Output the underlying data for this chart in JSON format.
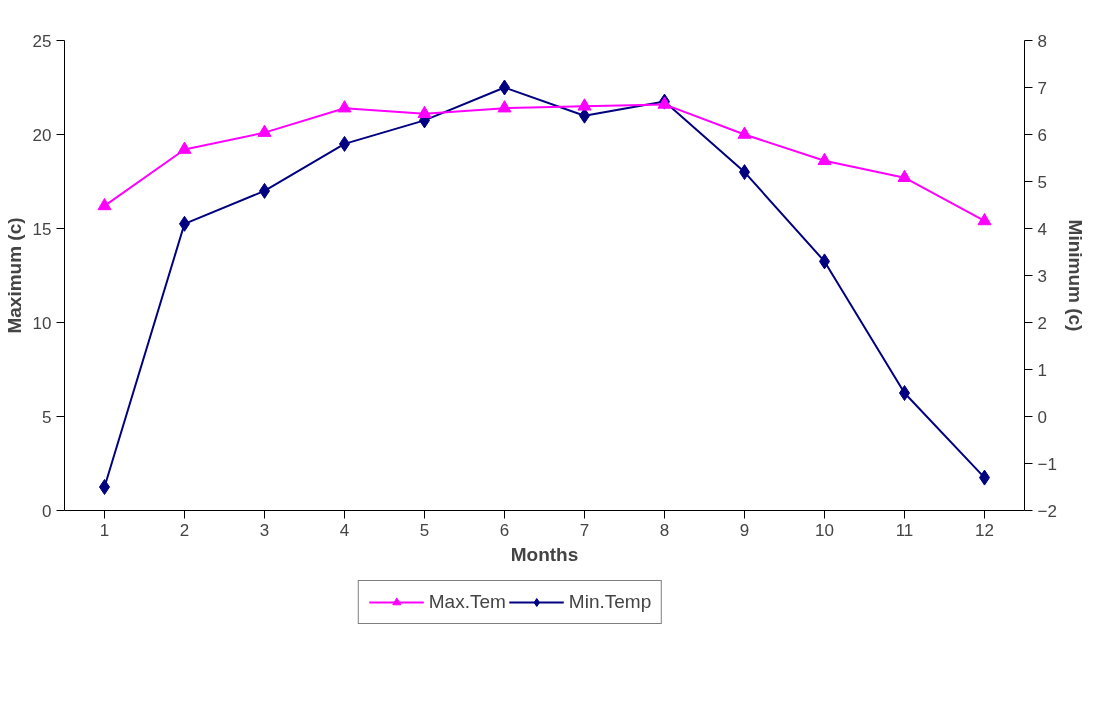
{
  "chart_data": {
    "type": "line",
    "xlabel": "Months",
    "ylabel": "Maximum (c)",
    "y2label": "Minimum (c)",
    "x": [
      1,
      2,
      3,
      4,
      5,
      6,
      7,
      8,
      9,
      10,
      11,
      12
    ],
    "xlim": [
      0.5,
      12.5
    ],
    "xticks": [
      1,
      2,
      3,
      4,
      5,
      6,
      7,
      8,
      9,
      10,
      11,
      12
    ],
    "ylim": [
      0,
      25
    ],
    "yticks": [
      0,
      5,
      10,
      15,
      20,
      25
    ],
    "y2lim": [
      -2,
      8
    ],
    "y2ticks": [
      -2,
      -1,
      0,
      1,
      2,
      3,
      4,
      5,
      6,
      7,
      8
    ],
    "grid": false,
    "legend": "bottom",
    "line_style": "solid",
    "series": [
      {
        "name": "Max.Tem",
        "color": "#ff00ff",
        "marker": "triangle",
        "values": [
          16.2,
          19.2,
          20.1,
          21.4,
          21.1,
          21.4,
          21.5,
          21.6,
          20.0,
          18.6,
          17.7,
          15.4
        ]
      },
      {
        "name": "Min.Temp",
        "color": "#000080",
        "marker": "diamond",
        "axis": "y2",
        "values": [
          -1.5,
          4.1,
          4.8,
          5.8,
          6.3,
          7.0,
          6.4,
          6.7,
          5.2,
          3.3,
          0.5,
          -1.3
        ]
      }
    ]
  }
}
